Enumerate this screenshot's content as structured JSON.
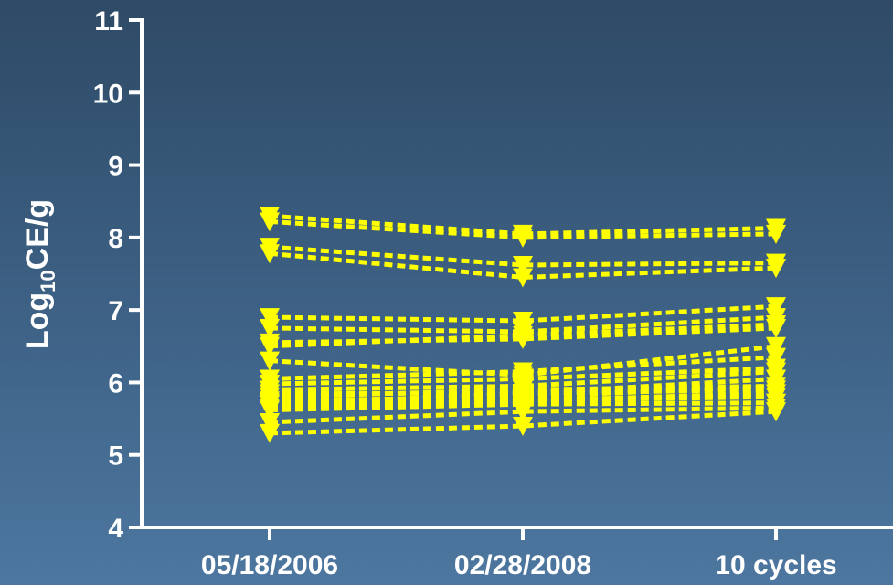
{
  "chart_data": {
    "type": "line",
    "title": "",
    "xlabel": "",
    "ylabel": {
      "prefix": "Log",
      "subscript": "10",
      "suffix": "CE/g"
    },
    "categories": [
      "05/18/2006",
      "02/28/2008",
      "10 cycles"
    ],
    "yticks": [
      "4",
      "5",
      "6",
      "7",
      "8",
      "9",
      "10",
      "11"
    ],
    "ylim": [
      4,
      11
    ],
    "grid": false,
    "legend": "none",
    "marker": "triangle-down",
    "line_style": "dashed",
    "colors": {
      "series": "#ffff00",
      "axis": "#ffffff"
    },
    "series": [
      {
        "values": [
          8.3,
          8.05,
          8.13
        ]
      },
      {
        "values": [
          8.22,
          8.0,
          8.05
        ]
      },
      {
        "values": [
          7.87,
          7.62,
          7.65
        ]
      },
      {
        "values": [
          7.78,
          7.45,
          7.58
        ]
      },
      {
        "values": [
          6.9,
          6.85,
          7.05
        ]
      },
      {
        "values": [
          6.75,
          6.7,
          6.9
        ]
      },
      {
        "values": [
          6.55,
          6.6,
          6.75
        ]
      },
      {
        "values": [
          6.5,
          6.65,
          6.8
        ]
      },
      {
        "values": [
          6.3,
          6.1,
          6.5
        ]
      },
      {
        "values": [
          6.05,
          6.15,
          6.35
        ]
      },
      {
        "values": [
          5.98,
          6.05,
          6.2
        ]
      },
      {
        "values": [
          5.9,
          5.95,
          6.15
        ]
      },
      {
        "values": [
          5.85,
          5.85,
          6.05
        ]
      },
      {
        "values": [
          5.8,
          5.9,
          5.95
        ]
      },
      {
        "values": [
          5.75,
          5.8,
          5.95
        ]
      },
      {
        "values": [
          5.72,
          5.75,
          5.85
        ]
      },
      {
        "values": [
          5.7,
          5.85,
          5.9
        ]
      },
      {
        "values": [
          5.65,
          5.75,
          5.8
        ]
      },
      {
        "values": [
          5.62,
          5.7,
          5.72
        ]
      },
      {
        "values": [
          5.45,
          5.6,
          5.65
        ]
      },
      {
        "values": [
          5.3,
          5.4,
          5.6
        ]
      }
    ]
  }
}
